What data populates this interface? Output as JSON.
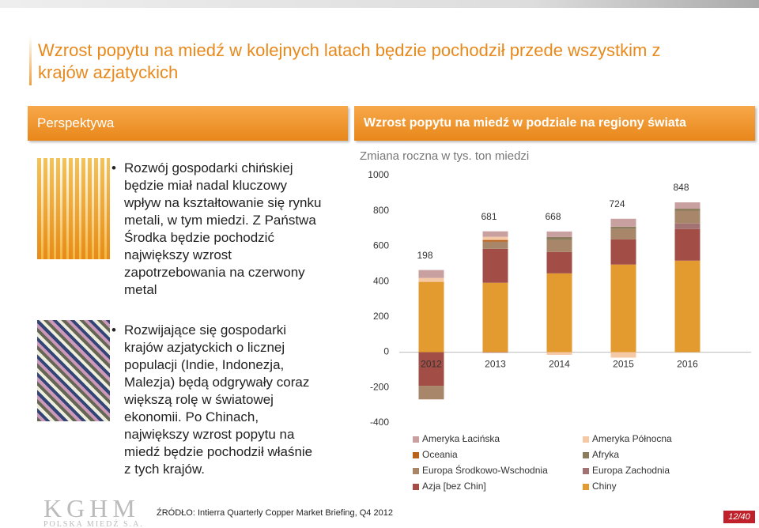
{
  "title": "Wzrost popytu na miedź w kolejnych latach będzie pochodził przede wszystkim z krajów azjatyckich",
  "left_panel": {
    "header": "Perspektywa",
    "bullets": [
      "Rozwój gospodarki chińskiej będzie miał nadal kluczowy wpływ na kształtowanie się rynku metali, w tym miedzi. Z Państwa Środka będzie pochodzić największy wzrost zapotrzebowania na czerwony metal",
      "Rozwijające się gospodarki krajów azjatyckich o licznej populacji (Indie, Indonezja, Malezja) będą odgrywały coraz większą rolę w światowej ekonomii. Po Chinach, największy wzrost popytu na miedź będzie pochodził właśnie z tych krajów."
    ]
  },
  "right_panel": {
    "header": "Wzrost popytu na miedź w podziale na regiony świata"
  },
  "chart_data": {
    "type": "stacked-bar",
    "y_label": "Zmiana roczna w tys. ton  miedzi",
    "categories": [
      "2012",
      "2013",
      "2014",
      "2015",
      "2016"
    ],
    "series": [
      {
        "name": "Ameryka Łacińska",
        "color": "#c9a0a0",
        "values": [
          45,
          31,
          31,
          45,
          36
        ]
      },
      {
        "name": "Ameryka Północna",
        "color": "#f6c9a6",
        "values": [
          22,
          18,
          -15,
          -31,
          0
        ]
      },
      {
        "name": "Oceania",
        "color": "#b8621c",
        "values": [
          0,
          10,
          0,
          0,
          0
        ]
      },
      {
        "name": "Afryka",
        "color": "#8a7c5c",
        "values": [
          0,
          0,
          18,
          13,
          13
        ]
      },
      {
        "name": "Europa Środkowo-Wschodnia",
        "color": "#a8866a",
        "values": [
          -77,
          40,
          67,
          58,
          71
        ]
      },
      {
        "name": "Europa Zachodnia",
        "color": "#a37272",
        "values": [
          0,
          -3,
          0,
          0,
          31
        ]
      },
      {
        "name": "Azja [bez Chin]",
        "color": "#a24e46",
        "values": [
          -190,
          192,
          121,
          143,
          179
        ]
      },
      {
        "name": "Chiny",
        "color": "#e39a2e",
        "values": [
          398,
          393,
          446,
          496,
          518
        ]
      }
    ],
    "totals": [
      198,
      681,
      668,
      724,
      848
    ],
    "ylim": [
      -400,
      1000
    ],
    "yticks": [
      -400,
      -200,
      0,
      200,
      400,
      600,
      800,
      1000
    ]
  },
  "source": "ŹRÓDŁO: Intierra Quarterly Copper Market Briefing, Q4 2012",
  "logo": {
    "name": "KGHM",
    "subtitle": "POLSKA MIEDŹ S.A."
  },
  "page": "12/40"
}
